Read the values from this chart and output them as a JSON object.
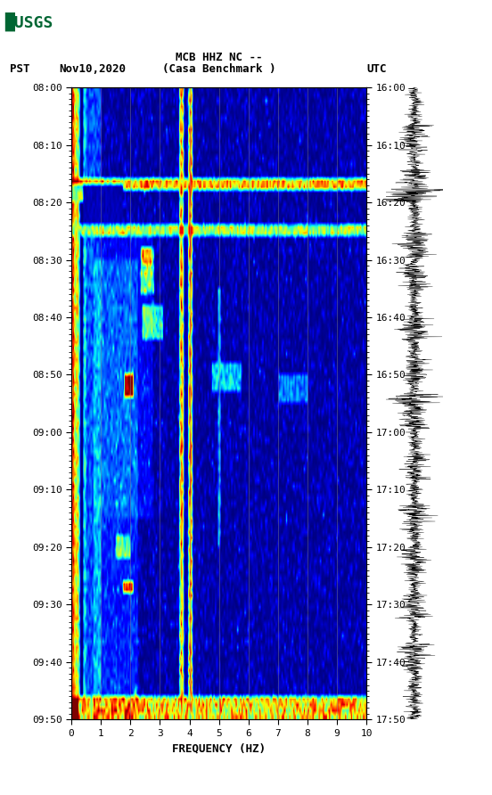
{
  "title_line1": "MCB HHZ NC --",
  "title_line2": "(Casa Benchmark )",
  "left_label": "PST",
  "date_label": "Nov10,2020",
  "right_label": "UTC",
  "xlabel": "FREQUENCY (HZ)",
  "freq_min": 0,
  "freq_max": 10,
  "ytick_labels_left": [
    "08:00",
    "08:10",
    "08:20",
    "08:30",
    "08:40",
    "08:50",
    "09:00",
    "09:10",
    "09:20",
    "09:30",
    "09:40",
    "09:50"
  ],
  "ytick_labels_right": [
    "16:00",
    "16:10",
    "16:20",
    "16:30",
    "16:40",
    "16:50",
    "17:00",
    "17:10",
    "17:20",
    "17:30",
    "17:40",
    "17:50"
  ],
  "xtick_positions": [
    0,
    1,
    2,
    3,
    4,
    5,
    6,
    7,
    8,
    9,
    10
  ],
  "bg_color": "#ffffff",
  "spectrogram_colormap": "jet",
  "vertical_lines_freq": [
    1,
    2,
    3,
    4,
    5,
    6,
    7,
    8,
    9
  ],
  "fig_width": 5.52,
  "fig_height": 8.92,
  "vmin": 0.0,
  "vmax": 1.0
}
